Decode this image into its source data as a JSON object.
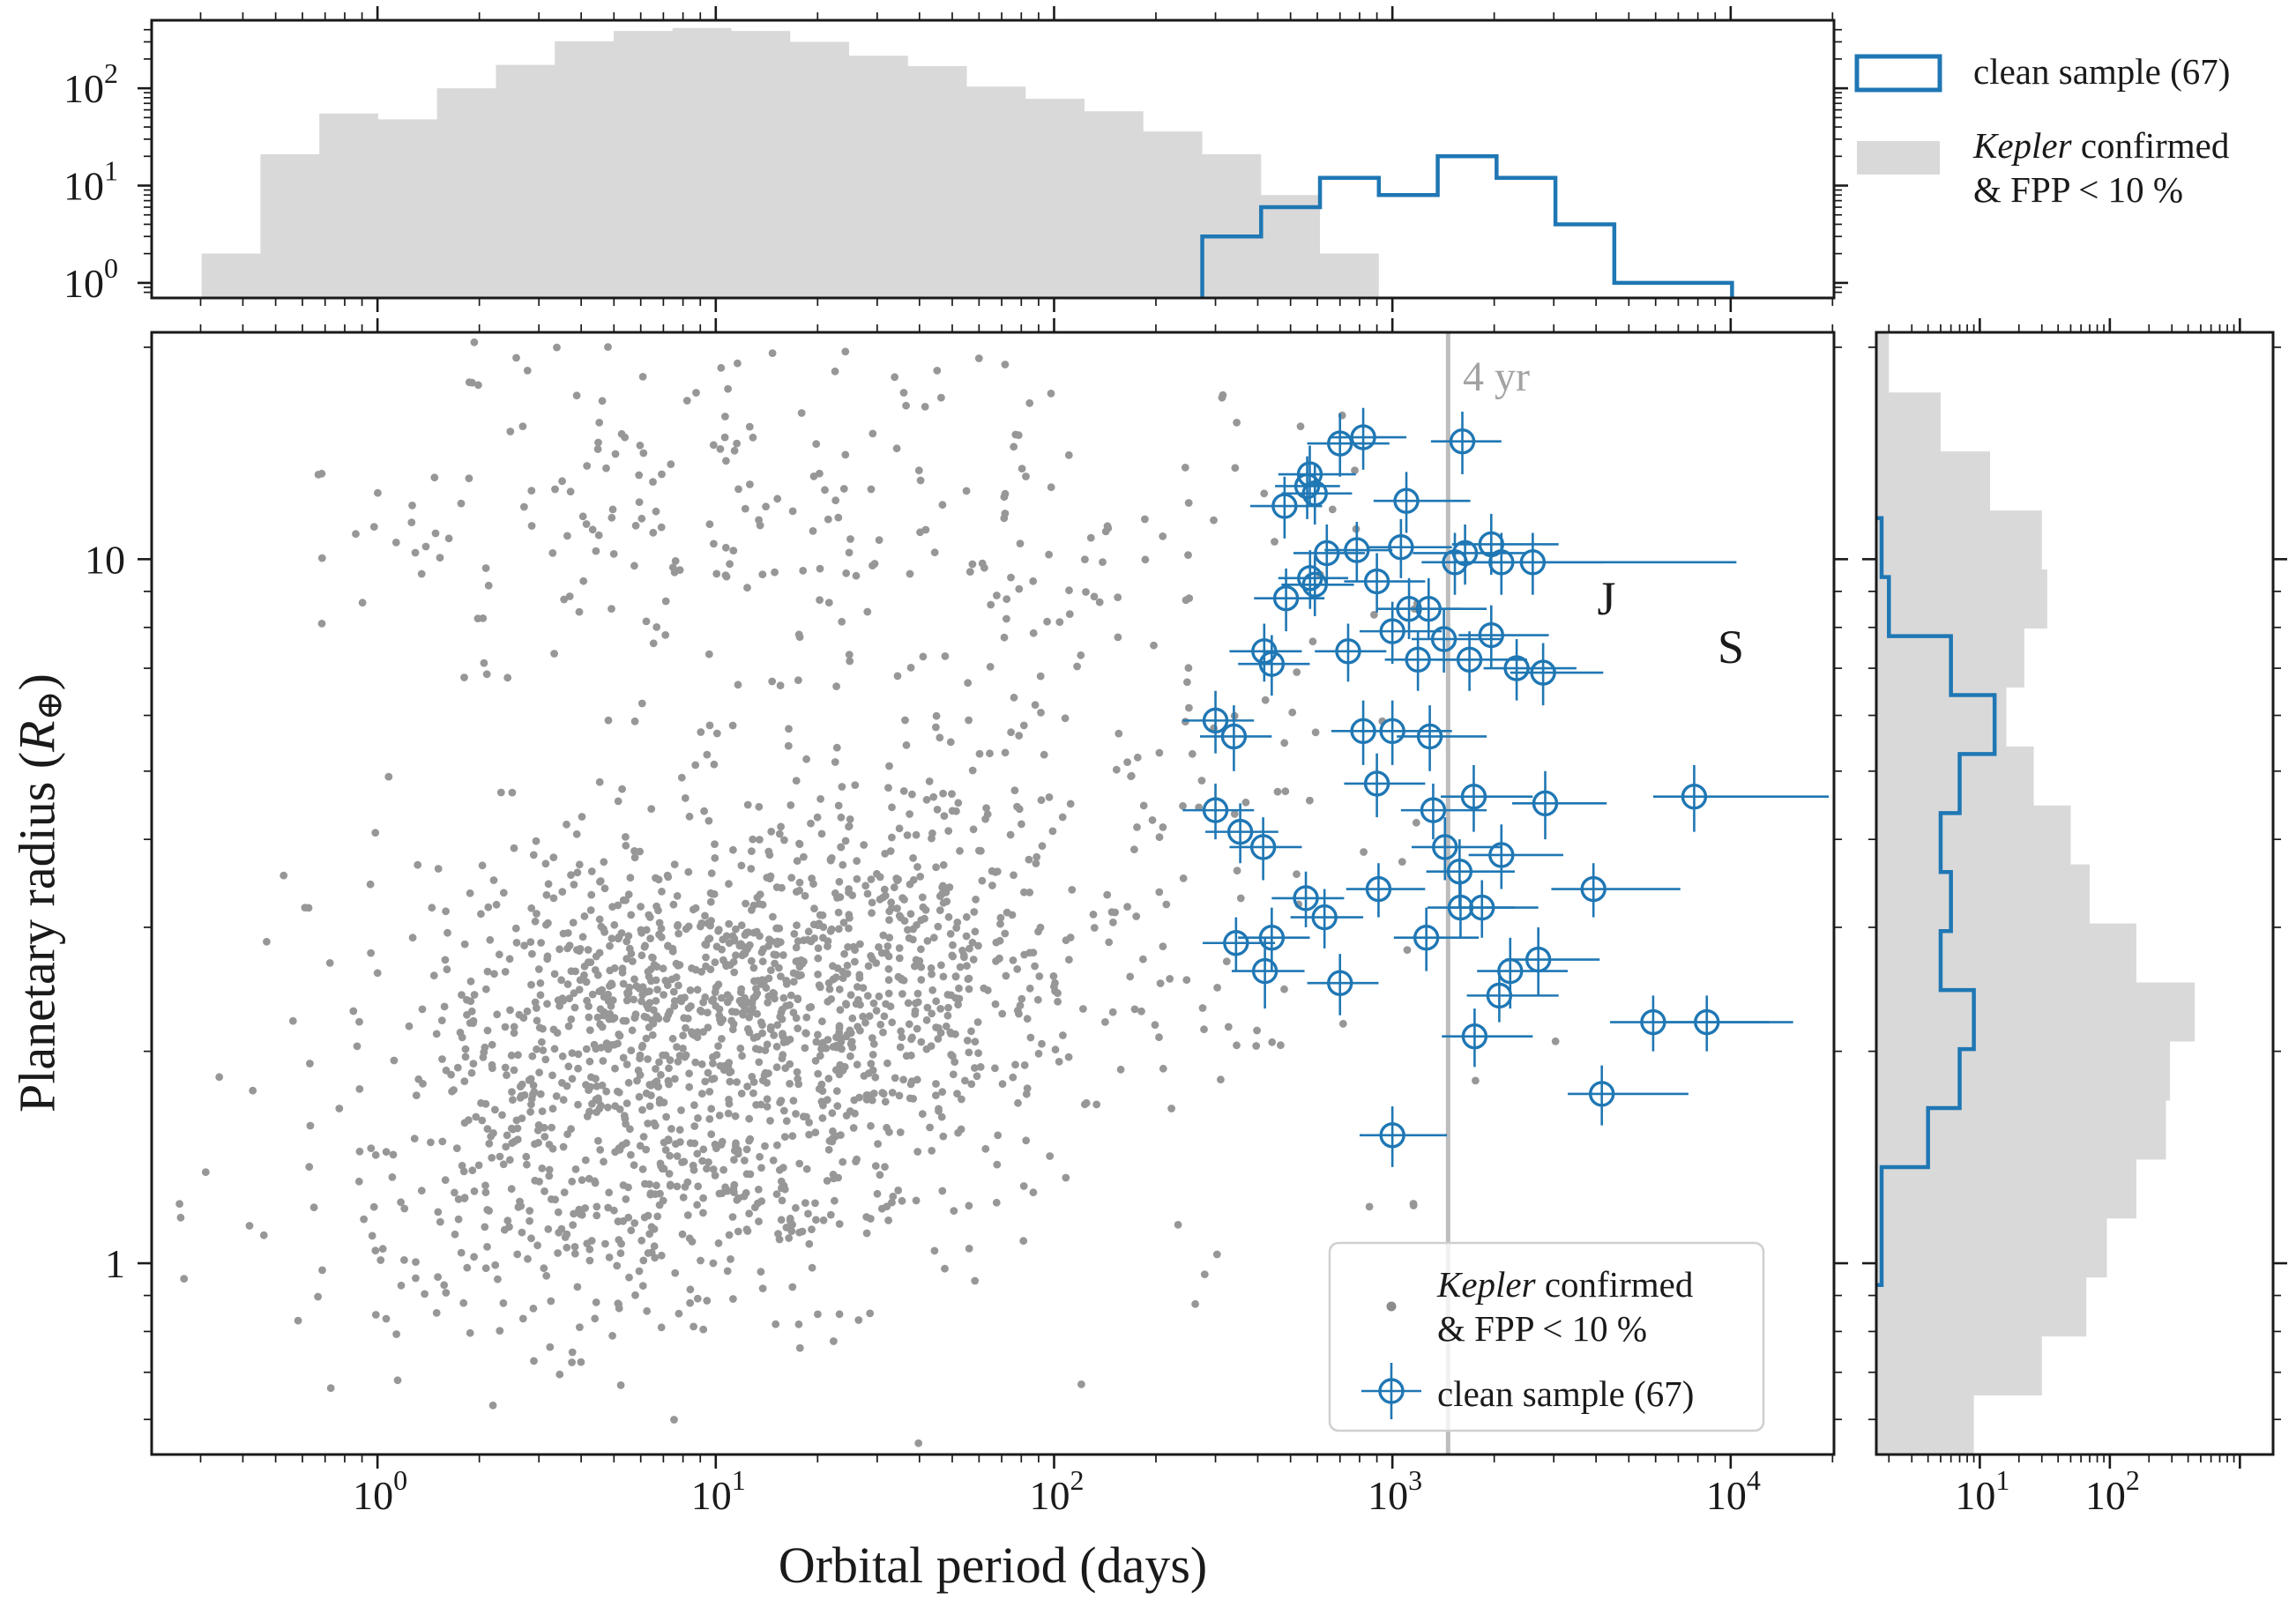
{
  "figure": {
    "kind": "scatter plot with marginal histograms",
    "colors": {
      "clean_sample_blue": "#1f77b4",
      "kepler_gray_fill": "#d9d9d9",
      "kepler_gray_dot": "#8c8c8c",
      "vline_gray": "#bdbdbd",
      "frame_black": "#1a1a1a",
      "legend_border": "#cfcfcf"
    }
  },
  "chart_data": {
    "type": "scatter",
    "title": "",
    "xlabel": "Orbital period (days)",
    "ylabel": {
      "pre": "Planetary radius (",
      "var": "R",
      "sub": "⊕",
      "post": ")"
    },
    "x_scale": "log",
    "y_scale": "log",
    "xlim": [
      0.215,
      20200
    ],
    "ylim": [
      0.535,
      21.0
    ],
    "grid": false,
    "vline": {
      "x": 1461,
      "label": "4 yr"
    },
    "annotations": [
      {
        "text": "J",
        "x": 4300,
        "y": 8.8
      },
      {
        "text": "S",
        "x": 10100,
        "y": 7.5
      }
    ],
    "legend_top": {
      "position": "outside top-right",
      "items": [
        {
          "label": "clean sample (67)",
          "marker": "blue-outlined-rect"
        },
        {
          "word_italic": "Kepler",
          "line1_rest": " confirmed",
          "line2": "& FPP < 10 %",
          "marker": "gray-filled-rect"
        }
      ]
    },
    "legend_main": {
      "position": "inside lower-right",
      "items": [
        {
          "word_italic": "Kepler",
          "line1_rest": " confirmed",
          "line2": "& FPP < 10 %",
          "marker": "gray-dot"
        },
        {
          "label": "clean sample (67)",
          "marker": "blue-errorbar-circle"
        }
      ]
    },
    "clean_sample": {
      "label": "clean sample (67)",
      "count": 67,
      "color": "#1f77b4",
      "points_format": [
        "period_days",
        "radius_Rearth",
        "period_err_lo_abs",
        "period_err_hi_abs",
        "radius_err_lo_abs",
        "radius_err_hi_abs"
      ],
      "points": [
        [
          570,
          13.2,
          460,
          780,
          11.9,
          14.5
        ],
        [
          700,
          14.6,
          560,
          980,
          13.1,
          16.1
        ],
        [
          820,
          14.9,
          660,
          1100,
          13.4,
          16.4
        ],
        [
          560,
          12.7,
          450,
          700,
          11.4,
          14.0
        ],
        [
          590,
          12.4,
          470,
          760,
          11.2,
          13.6
        ],
        [
          480,
          11.9,
          380,
          620,
          10.7,
          13.1
        ],
        [
          1100,
          12.1,
          880,
          1700,
          10.9,
          13.3
        ],
        [
          1610,
          14.7,
          1300,
          2100,
          13.2,
          16.2
        ],
        [
          640,
          10.2,
          510,
          830,
          9.2,
          11.2
        ],
        [
          785,
          10.3,
          630,
          1000,
          9.3,
          11.3
        ],
        [
          1060,
          10.4,
          850,
          1500,
          9.4,
          11.4
        ],
        [
          571,
          9.4,
          460,
          740,
          8.5,
          10.3
        ],
        [
          590,
          9.2,
          470,
          770,
          8.3,
          10.1
        ],
        [
          485,
          8.8,
          390,
          630,
          7.9,
          9.7
        ],
        [
          900,
          9.3,
          720,
          1250,
          8.4,
          10.2
        ],
        [
          1120,
          8.5,
          900,
          1600,
          7.7,
          9.4
        ],
        [
          1280,
          8.5,
          1020,
          1900,
          7.7,
          9.4
        ],
        [
          1640,
          10.2,
          1150,
          2500,
          9.2,
          11.2
        ],
        [
          1960,
          10.5,
          1500,
          3100,
          9.5,
          11.6
        ],
        [
          2600,
          9.9,
          1800,
          10400,
          8.9,
          10.9
        ],
        [
          2100,
          9.9,
          1600,
          4200,
          8.9,
          10.9
        ],
        [
          1420,
          7.7,
          1140,
          2100,
          6.9,
          8.5
        ],
        [
          1690,
          7.2,
          1350,
          2500,
          6.5,
          7.9
        ],
        [
          1960,
          7.8,
          1570,
          2900,
          7.0,
          8.6
        ],
        [
          2330,
          7.0,
          1860,
          3500,
          6.3,
          7.7
        ],
        [
          2790,
          6.9,
          2230,
          4200,
          6.2,
          7.6
        ],
        [
          1000,
          7.9,
          800,
          1400,
          7.1,
          8.7
        ],
        [
          1190,
          7.2,
          950,
          1700,
          6.5,
          7.9
        ],
        [
          418,
          7.4,
          330,
          540,
          6.7,
          8.1
        ],
        [
          440,
          7.1,
          350,
          570,
          6.4,
          7.8
        ],
        [
          740,
          7.4,
          590,
          960,
          6.7,
          8.1
        ],
        [
          1530,
          9.9,
          1220,
          2300,
          8.9,
          10.9
        ],
        [
          300,
          5.9,
          240,
          390,
          5.3,
          6.5
        ],
        [
          340,
          5.6,
          270,
          440,
          5.0,
          6.2
        ],
        [
          1000,
          5.7,
          800,
          1500,
          5.1,
          6.3
        ],
        [
          1290,
          5.6,
          1030,
          1900,
          5.0,
          6.2
        ],
        [
          820,
          5.7,
          660,
          1100,
          5.1,
          6.3
        ],
        [
          900,
          4.8,
          720,
          1250,
          4.3,
          5.3
        ],
        [
          1320,
          4.4,
          1060,
          1900,
          4.0,
          4.8
        ],
        [
          1740,
          4.6,
          1390,
          2600,
          4.1,
          5.1
        ],
        [
          2830,
          4.5,
          2260,
          4300,
          4.0,
          5.0
        ],
        [
          7800,
          4.6,
          5900,
          19500,
          4.1,
          5.1
        ],
        [
          300,
          4.4,
          240,
          390,
          4.0,
          4.8
        ],
        [
          355,
          4.1,
          280,
          460,
          3.7,
          4.5
        ],
        [
          415,
          3.9,
          330,
          540,
          3.5,
          4.3
        ],
        [
          1430,
          3.9,
          1140,
          2100,
          3.5,
          4.3
        ],
        [
          2100,
          3.8,
          1680,
          3200,
          3.4,
          4.2
        ],
        [
          1580,
          3.6,
          1260,
          2300,
          3.2,
          4.0
        ],
        [
          555,
          3.3,
          440,
          720,
          3.0,
          3.6
        ],
        [
          910,
          3.4,
          730,
          1250,
          3.1,
          3.7
        ],
        [
          3930,
          3.4,
          2950,
          7100,
          3.1,
          3.7
        ],
        [
          1590,
          3.2,
          1270,
          2300,
          2.9,
          3.5
        ],
        [
          1840,
          3.2,
          1470,
          2700,
          2.9,
          3.5
        ],
        [
          630,
          3.1,
          500,
          820,
          2.8,
          3.4
        ],
        [
          345,
          2.85,
          275,
          450,
          2.6,
          3.1
        ],
        [
          440,
          2.9,
          350,
          570,
          2.6,
          3.2
        ],
        [
          1260,
          2.9,
          1010,
          1800,
          2.6,
          3.2
        ],
        [
          420,
          2.6,
          335,
          550,
          2.3,
          2.9
        ],
        [
          2700,
          2.7,
          2160,
          4100,
          2.4,
          3.0
        ],
        [
          2230,
          2.6,
          1780,
          3300,
          2.3,
          2.9
        ],
        [
          700,
          2.5,
          560,
          910,
          2.25,
          2.75
        ],
        [
          2070,
          2.4,
          1660,
          3100,
          2.2,
          2.6
        ],
        [
          5900,
          2.2,
          4400,
          13000,
          2.0,
          2.4
        ],
        [
          8500,
          2.2,
          6400,
          15300,
          2.0,
          2.4
        ],
        [
          1750,
          2.1,
          1400,
          2600,
          1.9,
          2.3
        ],
        [
          4160,
          1.74,
          3300,
          7500,
          1.57,
          1.91
        ],
        [
          1000,
          1.52,
          800,
          1450,
          1.37,
          1.67
        ]
      ]
    },
    "background_sample": {
      "label": "Kepler confirmed & FPP < 10 %",
      "color": "#8c8c8c",
      "note": "dense cloud of ~2200 gray dots, approximated by seeded log-normal mixture",
      "seed": 7,
      "density_components": [
        {
          "n": 950,
          "mean_logP": 1.15,
          "sd_logP": 0.45,
          "mean_logR": 0.41,
          "sd_logR": 0.11
        },
        {
          "n": 650,
          "mean_logP": 0.75,
          "sd_logP": 0.45,
          "mean_logR": 0.16,
          "sd_logR": 0.13
        },
        {
          "n": 230,
          "mean_logP": 1.55,
          "sd_logP": 0.5,
          "mean_logR": 0.6,
          "sd_logR": 0.22
        },
        {
          "n": 170,
          "mean_logP": 1.05,
          "sd_logP": 0.6,
          "mean_logR": 1.06,
          "sd_logR": 0.11
        },
        {
          "n": 90,
          "mean_logP": 2.35,
          "sd_logP": 0.5,
          "mean_logR": 0.55,
          "sd_logR": 0.38
        },
        {
          "n": 25,
          "mean_logP": 1.0,
          "sd_logP": 0.55,
          "mean_logR": 1.32,
          "sd_logR": 0.1
        },
        {
          "n": 20,
          "mean_logP": 2.45,
          "sd_logP": 0.35,
          "mean_logR": 1.02,
          "sd_logR": 0.12
        }
      ]
    },
    "top_hist": {
      "axis": "counts of orbital period, log y-axis",
      "ylim": [
        0.7,
        500
      ],
      "ytick_exponents": [
        0,
        1,
        2
      ],
      "gray": {
        "log_start": -0.52,
        "log_bin_width": 0.174,
        "counts": [
          2,
          21,
          55,
          48,
          100,
          174,
          304,
          388,
          417,
          388,
          300,
          216,
          169,
          104,
          78,
          58,
          36,
          21,
          8,
          2
        ]
      },
      "blue": {
        "log_start": 2.438,
        "log_bin_width": 0.174,
        "counts": [
          3,
          6,
          12,
          8,
          20,
          12,
          4,
          1,
          1
        ]
      }
    },
    "right_hist": {
      "axis": "counts of planetary radius, log x-axis",
      "xlim": [
        1.6,
        1800
      ],
      "xtick_exponents": [
        1,
        2
      ],
      "gray": {
        "log_start": -0.2716,
        "log_bin_width": 0.0838,
        "counts": [
          9,
          30,
          66,
          95,
          160,
          270,
          290,
          450,
          160,
          70,
          50,
          26,
          16,
          22,
          33,
          30,
          12,
          5,
          2
        ]
      },
      "blue": {
        "log_start": -0.031,
        "log_bin_width": 0.0838,
        "counts": [
          1,
          1,
          4,
          7,
          9,
          5,
          6,
          5,
          7,
          13,
          6,
          2,
          1
        ]
      }
    }
  }
}
